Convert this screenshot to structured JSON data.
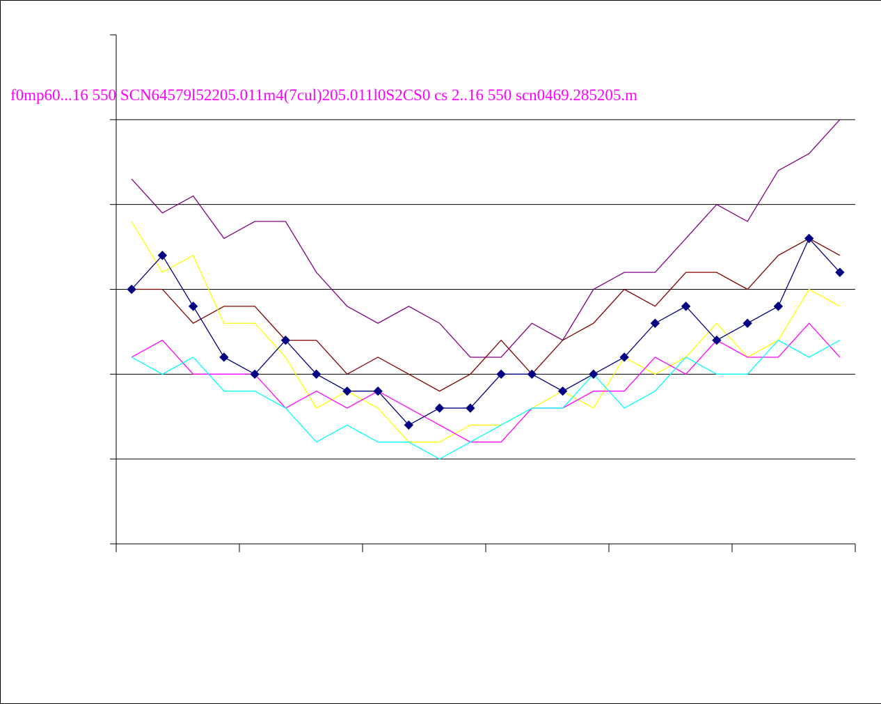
{
  "overlay_text": "f0mp60...16 550  SCN64579l52205.011m4(7cul)205.011l0S2CS0 cs 2..16 550  scn0469.285205.m",
  "chart_data": {
    "type": "line",
    "title": "",
    "xlabel": "",
    "ylabel": "",
    "ylim": [
      0,
      6
    ],
    "ygrid": [
      1,
      2,
      3,
      4,
      5
    ],
    "grid": true,
    "n_points": 24,
    "series": [
      {
        "color": "#800080",
        "marker": "none",
        "values": [
          4.3,
          3.9,
          4.1,
          3.6,
          3.8,
          3.8,
          3.2,
          2.8,
          2.6,
          2.8,
          2.6,
          2.2,
          2.2,
          2.6,
          2.4,
          3.0,
          3.2,
          3.2,
          3.6,
          4.0,
          3.8,
          4.4,
          4.6,
          5.0
        ]
      },
      {
        "color": "#800000",
        "marker": "none",
        "values": [
          3.0,
          3.0,
          2.6,
          2.8,
          2.8,
          2.4,
          2.4,
          2.0,
          2.2,
          2.0,
          1.8,
          2.0,
          2.4,
          2.0,
          2.4,
          2.6,
          3.0,
          2.8,
          3.2,
          3.2,
          3.0,
          3.4,
          3.6,
          3.4
        ]
      },
      {
        "color": "#ffff00",
        "marker": "none",
        "values": [
          3.8,
          3.2,
          3.4,
          2.6,
          2.6,
          2.2,
          1.6,
          1.8,
          1.6,
          1.2,
          1.2,
          1.4,
          1.4,
          1.6,
          1.8,
          1.6,
          2.2,
          2.0,
          2.2,
          2.6,
          2.2,
          2.4,
          3.0,
          2.8
        ]
      },
      {
        "color": "#ff00ff",
        "marker": "none",
        "values": [
          2.2,
          2.4,
          2.0,
          2.0,
          2.0,
          1.6,
          1.8,
          1.6,
          1.8,
          1.6,
          1.4,
          1.2,
          1.2,
          1.6,
          1.6,
          1.8,
          1.8,
          2.2,
          2.0,
          2.4,
          2.2,
          2.2,
          2.6,
          2.2
        ]
      },
      {
        "color": "#00ffff",
        "marker": "none",
        "values": [
          2.2,
          2.0,
          2.2,
          1.8,
          1.8,
          1.6,
          1.2,
          1.4,
          1.2,
          1.2,
          1.0,
          1.2,
          1.4,
          1.6,
          1.6,
          2.0,
          1.6,
          1.8,
          2.2,
          2.0,
          2.0,
          2.4,
          2.2,
          2.4
        ]
      },
      {
        "color": "#000080",
        "marker": "diamond",
        "values": [
          3.0,
          3.4,
          2.8,
          2.2,
          2.0,
          2.4,
          2.0,
          1.8,
          1.8,
          1.4,
          1.6,
          1.6,
          2.0,
          2.0,
          1.8,
          2.0,
          2.2,
          2.6,
          2.8,
          2.4,
          2.6,
          2.8,
          3.6,
          3.2
        ]
      }
    ]
  }
}
